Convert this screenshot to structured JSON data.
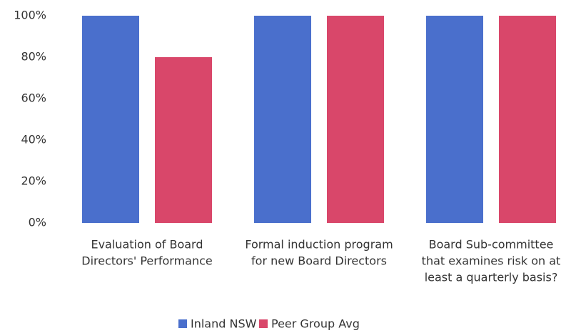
{
  "chart_data": {
    "type": "bar",
    "categories": [
      [
        "Evaluation of Board",
        "Directors' Performance"
      ],
      [
        "Formal induction program",
        "for new Board Directors"
      ],
      [
        "Board Sub-committee",
        "that examines risk  on at",
        "least a quarterly basis?"
      ]
    ],
    "series": [
      {
        "name": "Inland NSW",
        "color": "#4a6fcc",
        "values": [
          100,
          100,
          100
        ]
      },
      {
        "name": "Peer Group Avg",
        "color": "#d9476a",
        "values": [
          80,
          100,
          100
        ]
      }
    ],
    "ylim": [
      0,
      100
    ],
    "yticks": [
      {
        "value": 0,
        "label": "0%"
      },
      {
        "value": 20,
        "label": "20%"
      },
      {
        "value": 40,
        "label": "40%"
      },
      {
        "value": 60,
        "label": "60%"
      },
      {
        "value": 80,
        "label": "80%"
      },
      {
        "value": 100,
        "label": "100%"
      }
    ],
    "grid": false,
    "legend": "bottom"
  }
}
